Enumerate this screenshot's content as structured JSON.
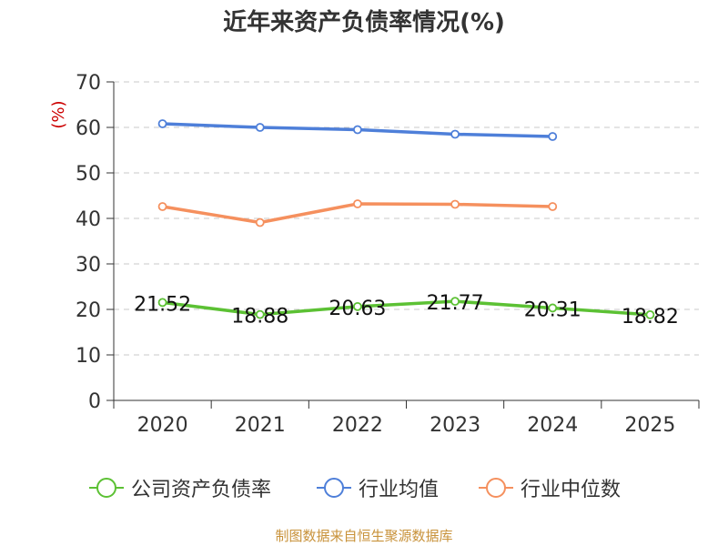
{
  "title": "近年来资产负债率情况(%)",
  "source": "制图数据来自恒生聚源数据库",
  "colors": {
    "company": "#5cc134",
    "industry_avg": "#4e7fd9",
    "industry_median": "#f5905e",
    "source_text": "#c8923a",
    "ylabel_text": "#cc0000"
  },
  "chart_data": {
    "type": "line",
    "title": "近年来资产负债率情况(%)",
    "ylabel": "(%)",
    "xlabel": "",
    "categories": [
      "2020",
      "2021",
      "2022",
      "2023",
      "2024",
      "2025"
    ],
    "ylim": [
      0,
      70
    ],
    "yticks": [
      0,
      10,
      20,
      30,
      40,
      50,
      60,
      70
    ],
    "grid": true,
    "legend_position": "bottom",
    "series": [
      {
        "name": "公司资产负债率",
        "color": "#5cc134",
        "values": [
          21.52,
          18.88,
          20.63,
          21.77,
          20.31,
          18.82
        ],
        "labels": [
          "21.52",
          "18.88",
          "20.63",
          "21.77",
          "20.31",
          "18.82"
        ]
      },
      {
        "name": "行业均值",
        "color": "#4e7fd9",
        "values": [
          60.8,
          60.0,
          59.5,
          58.5,
          58.0,
          null
        ]
      },
      {
        "name": "行业中位数",
        "color": "#f5905e",
        "values": [
          42.6,
          39.1,
          43.2,
          43.1,
          42.6,
          null
        ]
      }
    ]
  }
}
